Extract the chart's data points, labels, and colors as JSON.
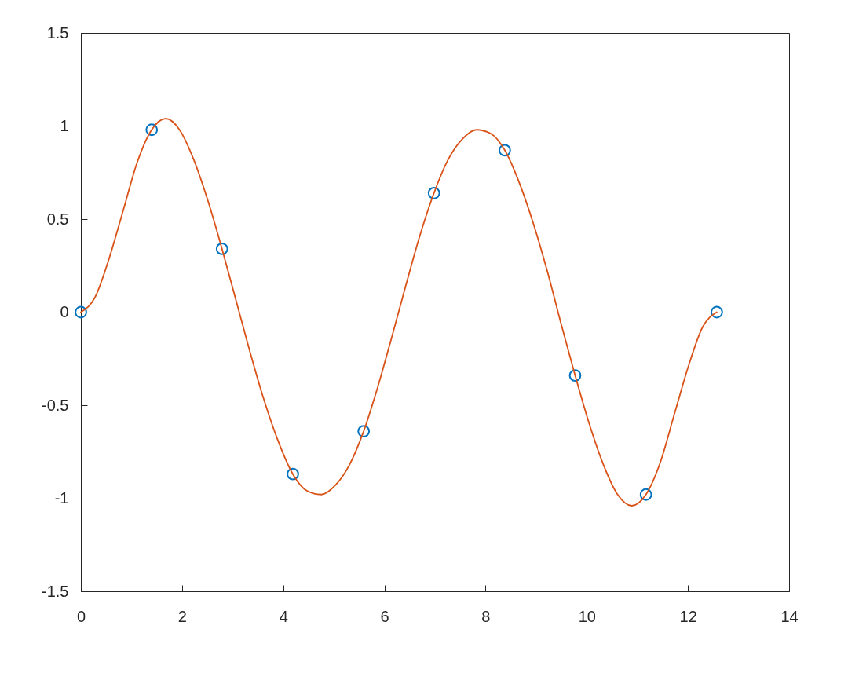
{
  "chart_data": {
    "type": "scatter",
    "xlim": [
      0,
      14
    ],
    "xticks": [
      0,
      2,
      4,
      6,
      8,
      10,
      12,
      14
    ],
    "ylim": [
      -1.5,
      1.5
    ],
    "yticks": [
      -1.5,
      -1,
      -0.5,
      0,
      0.5,
      1,
      1.5
    ],
    "grid": false,
    "series": [
      {
        "color": "#0072bd",
        "marker": "circle",
        "x": [
          0,
          1.4,
          2.79,
          4.19,
          5.59,
          6.98,
          8.38,
          9.77,
          11.17,
          12.57
        ],
        "values": [
          0,
          0.98,
          0.34,
          -0.87,
          -0.64,
          0.64,
          0.87,
          -0.34,
          -0.98,
          0
        ]
      },
      {
        "type": "line",
        "color": "#d95319",
        "line_style": "solid",
        "x": [
          0,
          0.28,
          0.56,
          0.84,
          1.12,
          1.4,
          1.68,
          1.95,
          2.23,
          2.51,
          2.79,
          3.07,
          3.35,
          3.63,
          3.91,
          4.19,
          4.47,
          4.75,
          5.03,
          5.31,
          5.59,
          5.86,
          6.14,
          6.42,
          6.7,
          6.98,
          7.26,
          7.54,
          7.82,
          8.1,
          8.38,
          8.66,
          8.94,
          9.22,
          9.49,
          9.77,
          10.05,
          10.33,
          10.61,
          10.89,
          11.17,
          11.45,
          11.73,
          12.01,
          12.29,
          12.57
        ],
        "values": [
          0,
          0.08,
          0.29,
          0.55,
          0.81,
          0.98,
          1.04,
          0.98,
          0.82,
          0.6,
          0.34,
          0.06,
          -0.22,
          -0.48,
          -0.7,
          -0.87,
          -0.96,
          -0.98,
          -0.93,
          -0.82,
          -0.64,
          -0.41,
          -0.14,
          0.14,
          0.41,
          0.64,
          0.82,
          0.93,
          0.98,
          0.96,
          0.87,
          0.7,
          0.48,
          0.22,
          -0.06,
          -0.34,
          -0.6,
          -0.82,
          -0.98,
          -1.04,
          -0.98,
          -0.81,
          -0.55,
          -0.29,
          -0.08,
          0
        ]
      }
    ]
  }
}
